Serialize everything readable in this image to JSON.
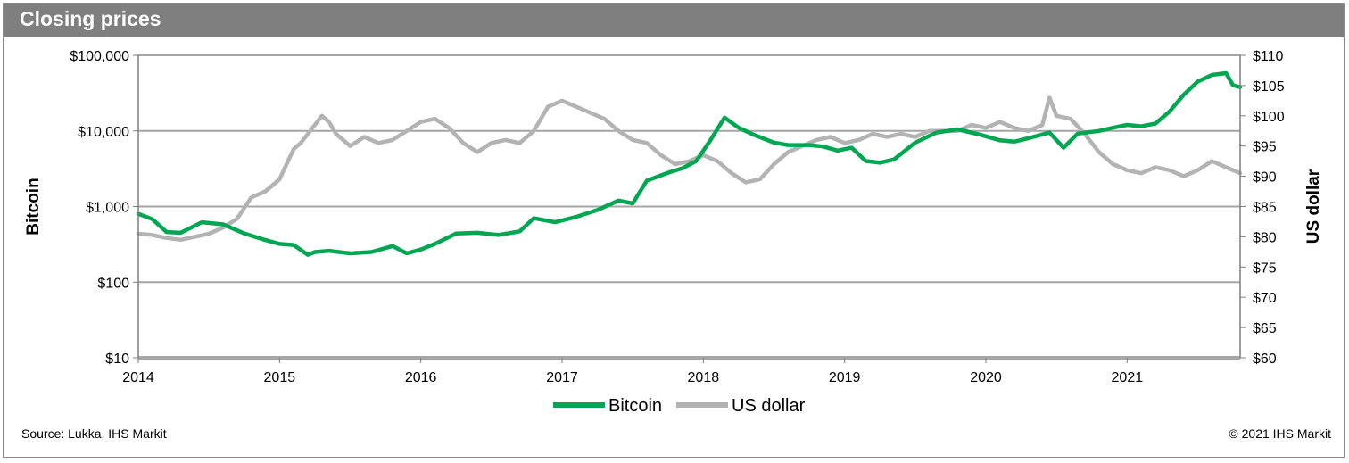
{
  "header": {
    "title": "Closing prices"
  },
  "footer": {
    "source": "Source: Lukka, IHS Markit",
    "copyright": "© 2021 IHS Markit"
  },
  "colors": {
    "bitcoin": "#00a651",
    "usdollar": "#b3b3b3",
    "gridline": "#a6a6a6",
    "header_bg": "#7f7f7f"
  },
  "chart_data": {
    "type": "line",
    "title": "Closing prices",
    "xlabel": "",
    "ylabel_left": "Bitcoin",
    "ylabel_right": "US dollar",
    "xlim": [
      2014.0,
      2021.8
    ],
    "x_ticks": [
      "2014",
      "2015",
      "2016",
      "2017",
      "2018",
      "2019",
      "2020",
      "2021"
    ],
    "x_tick_values": [
      2014,
      2015,
      2016,
      2017,
      2018,
      2019,
      2020,
      2021
    ],
    "y_left": {
      "scale": "log",
      "ylim": [
        10,
        100000
      ],
      "ticks": [
        10,
        100,
        1000,
        10000,
        100000
      ],
      "tick_labels": [
        "$10",
        "$100",
        "$1,000",
        "$10,000",
        "$100,000"
      ]
    },
    "y_right": {
      "scale": "linear",
      "ylim": [
        60,
        110
      ],
      "ticks": [
        60,
        65,
        70,
        75,
        80,
        85,
        90,
        95,
        100,
        105,
        110
      ],
      "tick_labels": [
        "$60",
        "$65",
        "$70",
        "$75",
        "$80",
        "$85",
        "$90",
        "$95",
        "$100",
        "$105",
        "$110"
      ]
    },
    "legend": {
      "position": "bottom-center",
      "entries": [
        "Bitcoin",
        "US dollar"
      ]
    },
    "series": [
      {
        "name": "Bitcoin",
        "axis": "left",
        "x": [
          2014.0,
          2014.1,
          2014.2,
          2014.3,
          2014.45,
          2014.6,
          2014.75,
          2014.9,
          2015.0,
          2015.1,
          2015.2,
          2015.25,
          2015.35,
          2015.5,
          2015.65,
          2015.8,
          2015.9,
          2016.0,
          2016.1,
          2016.25,
          2016.4,
          2016.55,
          2016.7,
          2016.8,
          2016.95,
          2017.1,
          2017.25,
          2017.4,
          2017.5,
          2017.6,
          2017.75,
          2017.85,
          2017.95,
          2018.05,
          2018.15,
          2018.25,
          2018.35,
          2018.5,
          2018.6,
          2018.75,
          2018.85,
          2018.95,
          2019.05,
          2019.15,
          2019.25,
          2019.35,
          2019.5,
          2019.65,
          2019.8,
          2019.95,
          2020.1,
          2020.2,
          2020.3,
          2020.45,
          2020.55,
          2020.65,
          2020.8,
          2020.9,
          2021.0,
          2021.1,
          2021.2,
          2021.3,
          2021.4,
          2021.5,
          2021.6,
          2021.7,
          2021.75,
          2021.8
        ],
        "values": [
          800,
          680,
          460,
          450,
          620,
          580,
          440,
          360,
          320,
          310,
          230,
          250,
          260,
          240,
          250,
          300,
          240,
          270,
          320,
          440,
          450,
          420,
          470,
          700,
          620,
          730,
          900,
          1200,
          1100,
          2200,
          2800,
          3200,
          4000,
          7500,
          15000,
          11000,
          9000,
          7000,
          6500,
          6500,
          6200,
          5500,
          6000,
          4000,
          3800,
          4200,
          7000,
          9500,
          10500,
          9000,
          7500,
          7200,
          8000,
          9500,
          6000,
          9200,
          10000,
          11000,
          12000,
          11500,
          12500,
          18000,
          30000,
          45000,
          55000,
          58000,
          40000,
          38000
        ]
      },
      {
        "name": "US dollar",
        "axis": "right",
        "x": [
          2014.0,
          2014.1,
          2014.2,
          2014.3,
          2014.4,
          2014.5,
          2014.6,
          2014.7,
          2014.8,
          2014.9,
          2015.0,
          2015.05,
          2015.1,
          2015.15,
          2015.2,
          2015.25,
          2015.3,
          2015.35,
          2015.4,
          2015.5,
          2015.6,
          2015.7,
          2015.8,
          2015.9,
          2016.0,
          2016.1,
          2016.2,
          2016.3,
          2016.4,
          2016.5,
          2016.6,
          2016.7,
          2016.8,
          2016.9,
          2017.0,
          2017.1,
          2017.2,
          2017.3,
          2017.4,
          2017.5,
          2017.6,
          2017.7,
          2017.8,
          2017.9,
          2018.0,
          2018.1,
          2018.2,
          2018.3,
          2018.4,
          2018.5,
          2018.6,
          2018.7,
          2018.8,
          2018.9,
          2019.0,
          2019.1,
          2019.2,
          2019.3,
          2019.4,
          2019.5,
          2019.6,
          2019.7,
          2019.8,
          2019.9,
          2020.0,
          2020.1,
          2020.2,
          2020.3,
          2020.4,
          2020.45,
          2020.5,
          2020.6,
          2020.7,
          2020.8,
          2020.9,
          2021.0,
          2021.1,
          2021.2,
          2021.3,
          2021.4,
          2021.5,
          2021.6,
          2021.7,
          2021.8
        ],
        "values": [
          80.5,
          80.3,
          79.8,
          79.5,
          80.0,
          80.5,
          81.5,
          83.0,
          86.5,
          87.5,
          89.5,
          92.0,
          94.5,
          95.5,
          97.0,
          98.5,
          100.0,
          99.0,
          97.0,
          95.0,
          96.5,
          95.5,
          96.0,
          97.5,
          99.0,
          99.5,
          98.0,
          95.5,
          94.0,
          95.5,
          96.0,
          95.5,
          97.5,
          101.5,
          102.5,
          101.5,
          100.5,
          99.5,
          97.5,
          96.0,
          95.5,
          93.5,
          92.0,
          92.5,
          93.5,
          92.5,
          90.5,
          89.0,
          89.5,
          92.0,
          94.0,
          95.0,
          96.0,
          96.5,
          95.5,
          96.0,
          97.0,
          96.5,
          97.0,
          96.5,
          97.5,
          97.5,
          97.5,
          98.5,
          98.0,
          99.0,
          98.0,
          97.5,
          98.5,
          103.0,
          100.0,
          99.5,
          97.0,
          94.0,
          92.0,
          91.0,
          90.5,
          91.5,
          91.0,
          90.0,
          91.0,
          92.5,
          91.5,
          90.5
        ]
      }
    ]
  }
}
